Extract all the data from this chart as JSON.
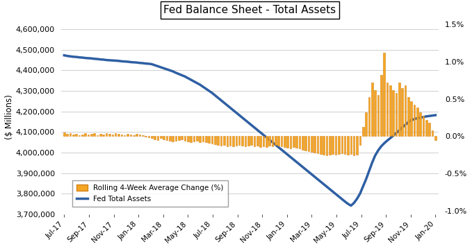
{
  "title": "Fed Balance Sheet - Total Assets",
  "ylabel_left": "($ Millions)",
  "ylim_left": [
    3700000,
    4650000
  ],
  "ylim_right": [
    -1.05,
    1.575
  ],
  "yticks_left": [
    3700000,
    3800000,
    3900000,
    4000000,
    4100000,
    4200000,
    4300000,
    4400000,
    4500000,
    4600000
  ],
  "yticks_right": [
    -1.0,
    -0.5,
    0.0,
    0.5,
    1.0,
    1.5
  ],
  "xtick_labels": [
    "Jul-17",
    "Sep-17",
    "Nov-17",
    "Jan-18",
    "Mar-18",
    "May-18",
    "Jul-18",
    "Sep-18",
    "Nov-18",
    "Jan-19",
    "Mar-19",
    "May-19",
    "Jul-19",
    "Sep-19",
    "Nov-19",
    "Jan-20"
  ],
  "line_color": "#2E5FA3",
  "bar_color": "#F5A623",
  "bar_edge_color": "#D4821A",
  "background_color": "#FFFFFF",
  "grid_color": "#C8C8C8",
  "legend_labels": [
    "Rolling 4-Week Average Change (%)",
    "Fed Total Assets"
  ],
  "fed_assets": [
    4473000,
    4470000,
    4468000,
    4466000,
    4465000,
    4463000,
    4462000,
    4460000,
    4459000,
    4458000,
    4456000,
    4455000,
    4453000,
    4452000,
    4450000,
    4449000,
    4448000,
    4447000,
    4446000,
    4444000,
    4443000,
    4442000,
    4440000,
    4439000,
    4438000,
    4436000,
    4435000,
    4433000,
    4432000,
    4430000,
    4425000,
    4420000,
    4415000,
    4410000,
    4405000,
    4400000,
    4395000,
    4388000,
    4382000,
    4376000,
    4370000,
    4362000,
    4354000,
    4346000,
    4338000,
    4330000,
    4320000,
    4310000,
    4300000,
    4290000,
    4278000,
    4266000,
    4254000,
    4242000,
    4230000,
    4218000,
    4206000,
    4194000,
    4182000,
    4170000,
    4158000,
    4146000,
    4134000,
    4122000,
    4110000,
    4098000,
    4086000,
    4074000,
    4062000,
    4050000,
    4038000,
    4026000,
    4014000,
    4002000,
    3990000,
    3978000,
    3966000,
    3954000,
    3942000,
    3930000,
    3918000,
    3906000,
    3894000,
    3882000,
    3870000,
    3858000,
    3846000,
    3834000,
    3822000,
    3810000,
    3798000,
    3786000,
    3774000,
    3762000,
    3751000,
    3742000,
    3755000,
    3775000,
    3800000,
    3835000,
    3870000,
    3910000,
    3950000,
    3985000,
    4010000,
    4030000,
    4045000,
    4058000,
    4070000,
    4082000,
    4095000,
    4108000,
    4122000,
    4135000,
    4148000,
    4158000,
    4163000,
    4167000,
    4170000,
    4173000,
    4176000,
    4178000,
    4180000,
    4182000
  ],
  "rolling_change": [
    0.05,
    0.03,
    0.04,
    0.02,
    0.03,
    0.01,
    0.02,
    0.04,
    0.02,
    0.03,
    0.04,
    0.01,
    0.03,
    0.02,
    0.04,
    0.03,
    0.02,
    0.04,
    0.03,
    0.02,
    0.01,
    0.03,
    0.02,
    0.01,
    0.03,
    0.02,
    0.01,
    -0.01,
    -0.02,
    -0.03,
    -0.04,
    -0.05,
    -0.03,
    -0.04,
    -0.05,
    -0.06,
    -0.07,
    -0.06,
    -0.05,
    -0.04,
    -0.06,
    -0.07,
    -0.08,
    -0.07,
    -0.06,
    -0.08,
    -0.07,
    -0.08,
    -0.09,
    -0.1,
    -0.11,
    -0.12,
    -0.13,
    -0.12,
    -0.14,
    -0.13,
    -0.14,
    -0.13,
    -0.12,
    -0.13,
    -0.14,
    -0.13,
    -0.12,
    -0.14,
    -0.13,
    -0.15,
    -0.14,
    -0.15,
    -0.13,
    -0.14,
    -0.12,
    -0.13,
    -0.14,
    -0.15,
    -0.16,
    -0.17,
    -0.15,
    -0.16,
    -0.17,
    -0.18,
    -0.19,
    -0.2,
    -0.21,
    -0.22,
    -0.23,
    -0.24,
    -0.25,
    -0.26,
    -0.25,
    -0.24,
    -0.25,
    -0.24,
    -0.23,
    -0.24,
    -0.25,
    -0.24,
    -0.26,
    -0.25,
    -0.12,
    0.12,
    0.32,
    0.52,
    0.72,
    0.62,
    0.55,
    0.82,
    1.12,
    0.72,
    0.68,
    0.62,
    0.58,
    0.72,
    0.65,
    0.68,
    0.52,
    0.47,
    0.42,
    0.38,
    0.32,
    0.27,
    0.22,
    0.18,
    0.08,
    -0.05
  ]
}
